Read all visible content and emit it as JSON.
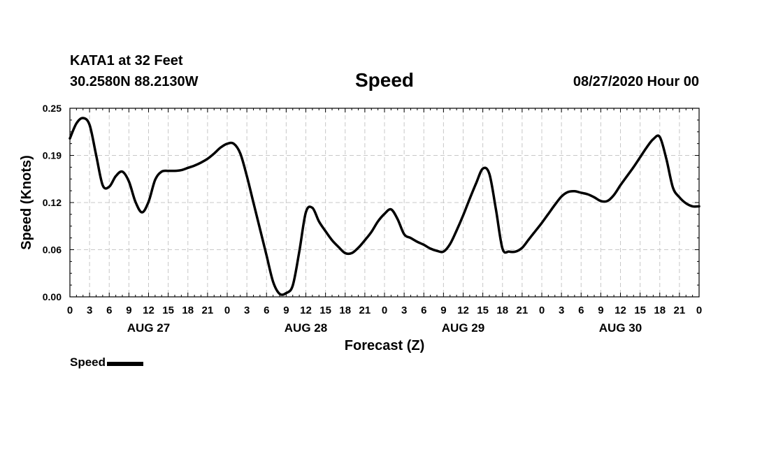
{
  "header": {
    "station": "KATA1 at 32 Feet",
    "coords": "30.2580N 88.2130W",
    "title": "Speed",
    "runtime": "08/27/2020 Hour 00"
  },
  "legend": {
    "label": "Speed",
    "color": "#000000"
  },
  "chart_data": {
    "type": "line",
    "title": "Speed",
    "xlabel": "Forecast (Z)",
    "ylabel": "Speed (Knots)",
    "ylim": [
      0,
      0.25
    ],
    "xlim": [
      0,
      96
    ],
    "x_unit": "forecast hour",
    "yticks": [
      "0.00",
      "0.06",
      "0.12",
      "0.19",
      "0.25"
    ],
    "ytick_values": [
      0,
      0.0625,
      0.125,
      0.1875,
      0.25
    ],
    "xtick_labels": [
      "0",
      "3",
      "6",
      "9",
      "12",
      "15",
      "18",
      "21",
      "0",
      "3",
      "6",
      "9",
      "12",
      "15",
      "18",
      "21",
      "0",
      "3",
      "6",
      "9",
      "12",
      "15",
      "18",
      "21",
      "0",
      "3",
      "6",
      "9",
      "12",
      "15",
      "18",
      "21",
      "0"
    ],
    "date_labels": [
      {
        "label": "AUG 27",
        "hour": 12
      },
      {
        "label": "AUG 28",
        "hour": 36
      },
      {
        "label": "AUG 29",
        "hour": 60
      },
      {
        "label": "AUG 30",
        "hour": 84
      }
    ],
    "grid": true,
    "legend_position": "bottom-left",
    "series": [
      {
        "name": "Speed",
        "color": "#000000",
        "x": [
          0,
          1,
          2,
          3,
          4,
          5,
          6,
          7,
          8,
          9,
          10,
          11,
          12,
          13,
          14,
          15,
          16,
          17,
          18,
          19,
          20,
          21,
          22,
          23,
          24,
          25,
          26,
          27,
          28,
          29,
          30,
          31,
          32,
          33,
          34,
          35,
          36,
          37,
          38,
          39,
          40,
          41,
          42,
          43,
          44,
          45,
          46,
          47,
          48,
          49,
          50,
          51,
          52,
          53,
          54,
          55,
          56,
          57,
          58,
          59,
          60,
          61,
          62,
          63,
          64,
          65,
          66,
          67,
          68,
          69,
          70,
          71,
          72,
          73,
          74,
          75,
          76,
          77,
          78,
          79,
          80,
          81,
          82,
          83,
          84,
          85,
          86,
          87,
          88,
          89,
          90,
          91,
          92,
          93,
          94,
          95,
          96
        ],
        "values": [
          0.21,
          0.23,
          0.237,
          0.228,
          0.188,
          0.148,
          0.146,
          0.16,
          0.166,
          0.153,
          0.126,
          0.112,
          0.126,
          0.155,
          0.166,
          0.167,
          0.167,
          0.168,
          0.171,
          0.174,
          0.178,
          0.183,
          0.19,
          0.198,
          0.203,
          0.203,
          0.19,
          0.16,
          0.125,
          0.09,
          0.055,
          0.02,
          0.004,
          0.005,
          0.015,
          0.06,
          0.112,
          0.118,
          0.1,
          0.087,
          0.075,
          0.066,
          0.058,
          0.058,
          0.065,
          0.075,
          0.086,
          0.1,
          0.11,
          0.116,
          0.103,
          0.083,
          0.078,
          0.073,
          0.069,
          0.064,
          0.061,
          0.06,
          0.07,
          0.088,
          0.108,
          0.13,
          0.151,
          0.17,
          0.163,
          0.116,
          0.064,
          0.06,
          0.06,
          0.065,
          0.076,
          0.087,
          0.098,
          0.11,
          0.122,
          0.133,
          0.139,
          0.14,
          0.138,
          0.136,
          0.132,
          0.127,
          0.127,
          0.135,
          0.148,
          0.16,
          0.172,
          0.185,
          0.198,
          0.209,
          0.212,
          0.183,
          0.145,
          0.132,
          0.124,
          0.12,
          0.12
        ]
      }
    ]
  }
}
